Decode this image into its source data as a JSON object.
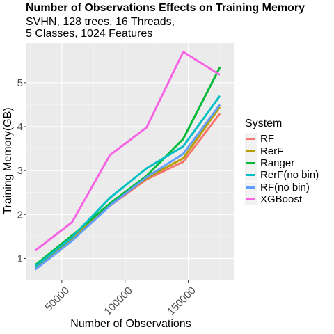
{
  "title": "Number of Observations Effects on Training Memory",
  "subtitle": "SVHN, 128 trees, 16 Threads,\n5 Classes, 1024 Features",
  "chart_data": {
    "type": "line",
    "title": "Number of Observations Effects on Training Memory",
    "subtitle": "SVHN, 128 trees, 16 Threads,\n5 Classes, 1024 Features",
    "xlabel": "Number of Observations",
    "ylabel": "Training Memory(GB)",
    "x_ticks": [
      50000,
      100000,
      150000
    ],
    "x_tick_labels": [
      "50000",
      "100000",
      "150000"
    ],
    "y_ticks": [
      1,
      2,
      3,
      4,
      5
    ],
    "y_tick_labels": [
      "1",
      "2",
      "3",
      "4",
      "5"
    ],
    "xlim": [
      22000,
      186000
    ],
    "ylim": [
      0.5,
      5.9
    ],
    "grid": true,
    "legend_title": "System",
    "legend_position": "right",
    "x": [
      29000,
      58000,
      88000,
      117000,
      146000,
      175000
    ],
    "series": [
      {
        "name": "RF",
        "color": "#F8766D",
        "values": [
          0.78,
          1.42,
          2.2,
          2.8,
          3.2,
          4.3
        ]
      },
      {
        "name": "RerF",
        "color": "#B79F00",
        "values": [
          0.8,
          1.45,
          2.22,
          2.83,
          3.28,
          4.45
        ]
      },
      {
        "name": "Ranger",
        "color": "#00BA38",
        "values": [
          0.85,
          1.52,
          2.25,
          2.88,
          3.72,
          5.35
        ]
      },
      {
        "name": "RerF(no bin)",
        "color": "#00BFC4",
        "values": [
          0.82,
          1.48,
          2.38,
          3.05,
          3.55,
          4.7
        ]
      },
      {
        "name": "RF(no bin)",
        "color": "#619CFF",
        "values": [
          0.75,
          1.4,
          2.2,
          2.85,
          3.38,
          4.5
        ]
      },
      {
        "name": "XGBoost",
        "color": "#F564E3",
        "values": [
          1.18,
          1.82,
          3.35,
          3.98,
          5.7,
          5.18
        ]
      }
    ]
  }
}
